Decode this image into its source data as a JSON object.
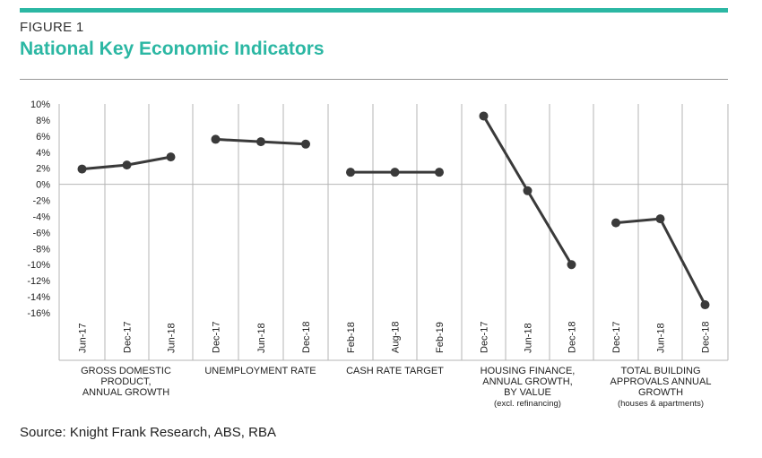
{
  "figure": {
    "label": "FIGURE 1",
    "title": "National Key Economic Indicators",
    "source": "Source: Knight Frank Research, ABS, RBA"
  },
  "colors": {
    "accent": "#2bb7a3",
    "line": "#3a3a3a",
    "grid": "#b5b5b5"
  },
  "chart_data": {
    "type": "line",
    "title": "National Key Economic Indicators",
    "ylim": [
      -16,
      10
    ],
    "yticks": [
      "10%",
      "8%",
      "6%",
      "4%",
      "2%",
      "0%",
      "-2%",
      "-4%",
      "-6%",
      "-8%",
      "-10%",
      "-12%",
      "-14%",
      "-16%"
    ],
    "grid": true,
    "panels": [
      {
        "label_lines": [
          "GROSS DOMESTIC",
          "PRODUCT,",
          "ANNUAL GROWTH"
        ],
        "note": "",
        "x": [
          "Jun-17",
          "Dec-17",
          "Jun-18"
        ],
        "values": [
          1.9,
          2.4,
          3.4
        ]
      },
      {
        "label_lines": [
          "UNEMPLOYMENT RATE"
        ],
        "note": "",
        "x": [
          "Dec-17",
          "Jun-18",
          "Dec-18"
        ],
        "values": [
          5.6,
          5.3,
          5.0
        ]
      },
      {
        "label_lines": [
          "CASH RATE TARGET"
        ],
        "note": "",
        "x": [
          "Feb-18",
          "Aug-18",
          "Feb-19"
        ],
        "values": [
          1.5,
          1.5,
          1.5
        ]
      },
      {
        "label_lines": [
          "HOUSING FINANCE,",
          "ANNUAL GROWTH,",
          "BY VALUE"
        ],
        "note": "(excl. refinancing)",
        "x": [
          "Dec-17",
          "Jun-18",
          "Dec-18"
        ],
        "values": [
          8.5,
          -0.8,
          -10.0
        ]
      },
      {
        "label_lines": [
          "TOTAL BUILDING",
          "APPROVALS ANNUAL",
          "GROWTH"
        ],
        "note": "(houses & apartments)",
        "x": [
          "Dec-17",
          "Jun-18",
          "Dec-18"
        ],
        "values": [
          -4.8,
          -4.3,
          -15.0
        ]
      }
    ]
  }
}
